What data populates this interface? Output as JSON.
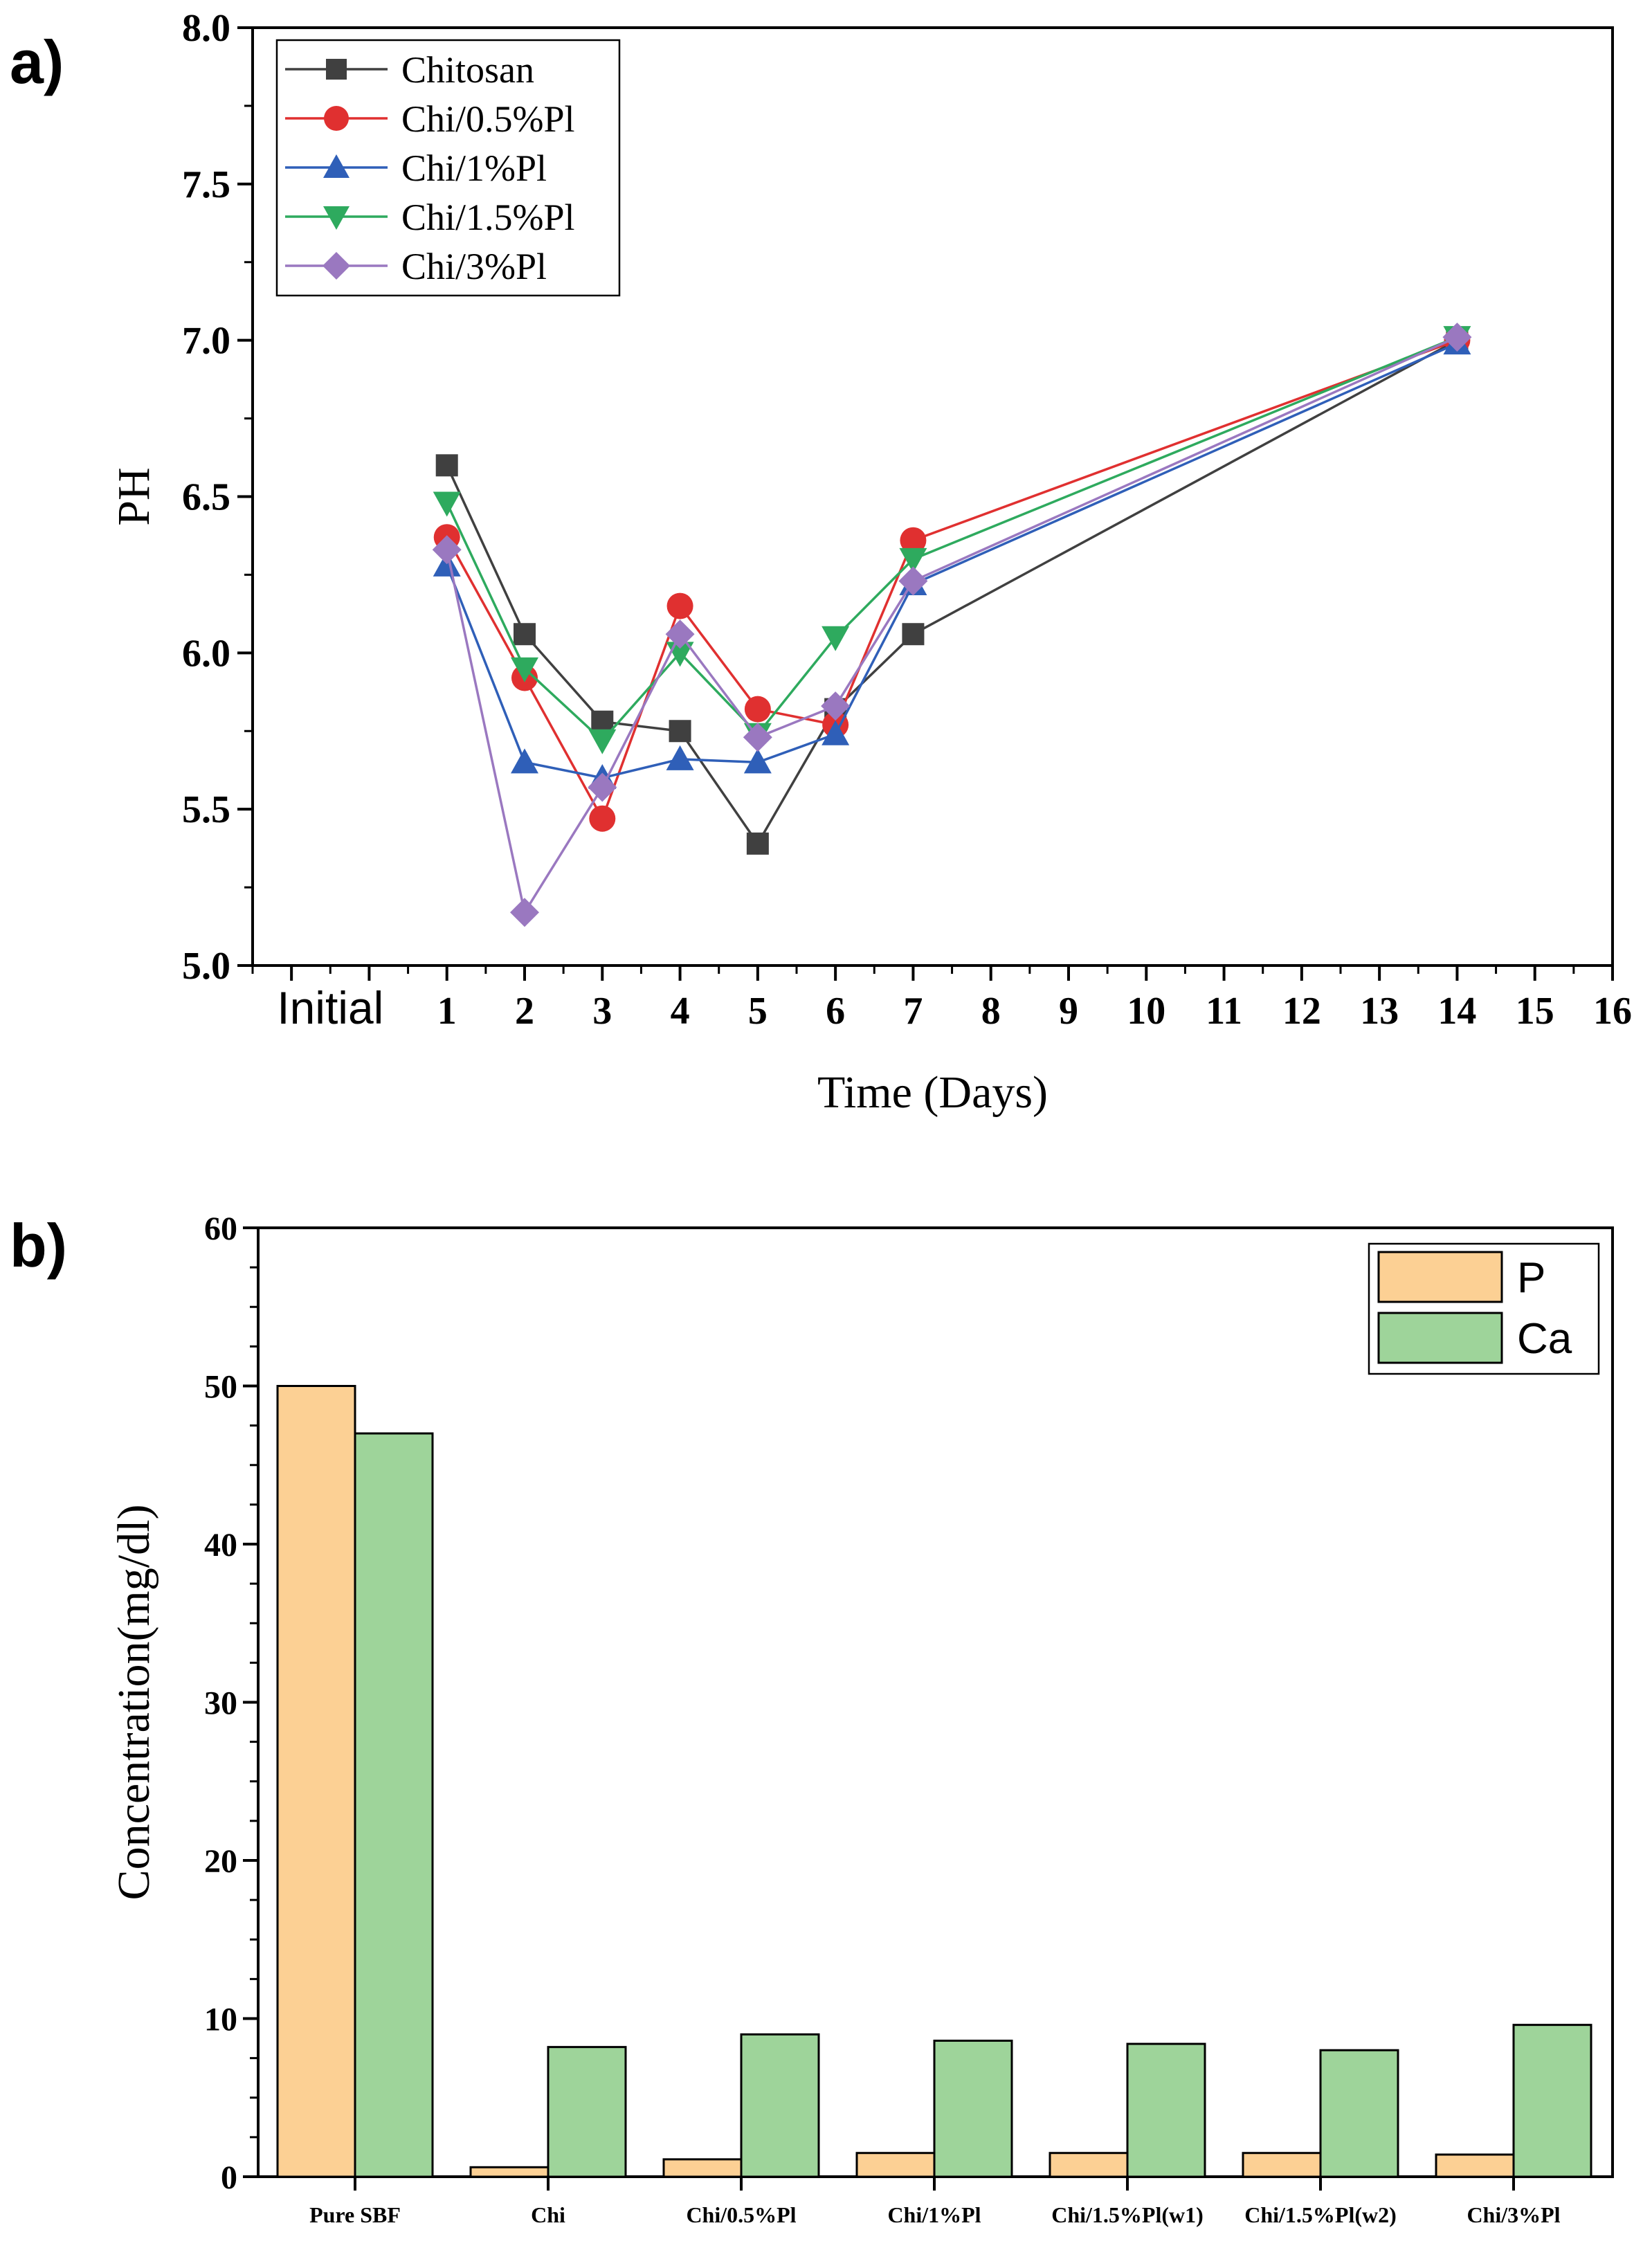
{
  "panels": {
    "a": "a)",
    "b": "b)"
  },
  "chart_data": [
    {
      "type": "line",
      "panel": "a)",
      "title": "",
      "xlabel": "Time (Days)",
      "ylabel": "PH",
      "xlim": [
        -1.5,
        16
      ],
      "ylim": [
        5.0,
        8.0
      ],
      "x_ticks": [
        {
          "value": -0.5,
          "label": "Initial"
        },
        {
          "value": 1,
          "label": "1"
        },
        {
          "value": 2,
          "label": "2"
        },
        {
          "value": 3,
          "label": "3"
        },
        {
          "value": 4,
          "label": "4"
        },
        {
          "value": 5,
          "label": "5"
        },
        {
          "value": 6,
          "label": "6"
        },
        {
          "value": 7,
          "label": "7"
        },
        {
          "value": 8,
          "label": "8"
        },
        {
          "value": 9,
          "label": "9"
        },
        {
          "value": 10,
          "label": "10"
        },
        {
          "value": 11,
          "label": "11"
        },
        {
          "value": 12,
          "label": "12"
        },
        {
          "value": 13,
          "label": "13"
        },
        {
          "value": 14,
          "label": "14"
        },
        {
          "value": 15,
          "label": "15"
        },
        {
          "value": 16,
          "label": "16"
        }
      ],
      "y_ticks": [
        {
          "value": 5.0,
          "label": "5.0"
        },
        {
          "value": 5.5,
          "label": "5.5"
        },
        {
          "value": 6.0,
          "label": "6.0"
        },
        {
          "value": 6.5,
          "label": "6.5"
        },
        {
          "value": 7.0,
          "label": "7.0"
        },
        {
          "value": 7.5,
          "label": "7.5"
        },
        {
          "value": 8.0,
          "label": "8.0"
        }
      ],
      "x": [
        1,
        2,
        3,
        4,
        5,
        6,
        7,
        14
      ],
      "legend_position": "top-left",
      "series": [
        {
          "name": "Chitosan",
          "color": "#404040",
          "marker": "square",
          "values": [
            6.6,
            6.06,
            5.78,
            5.75,
            5.39,
            5.82,
            6.06,
            7.0
          ]
        },
        {
          "name": "Chi/0.5%Pl",
          "color": "#e03030",
          "marker": "circle",
          "values": [
            6.37,
            5.92,
            5.47,
            6.15,
            5.82,
            5.77,
            6.36,
            7.0
          ]
        },
        {
          "name": "Chi/1%Pl",
          "color": "#2f5fb8",
          "marker": "triangle-up",
          "values": [
            6.28,
            5.65,
            5.6,
            5.66,
            5.65,
            5.74,
            6.22,
            6.99
          ]
        },
        {
          "name": "Chi/1.5%Pl",
          "color": "#2eaa5e",
          "marker": "triangle-down",
          "values": [
            6.48,
            5.95,
            5.72,
            6.0,
            5.74,
            6.05,
            6.3,
            7.01
          ]
        },
        {
          "name": "Chi/3%Pl",
          "color": "#9a78c0",
          "marker": "diamond",
          "values": [
            6.33,
            5.17,
            5.57,
            6.06,
            5.73,
            5.83,
            6.23,
            7.01
          ]
        }
      ]
    },
    {
      "type": "bar",
      "panel": "b)",
      "title": "",
      "xlabel": "",
      "ylabel": "Concentration(mg/dl)",
      "ylim": [
        0,
        60
      ],
      "y_ticks": [
        {
          "value": 0,
          "label": "0"
        },
        {
          "value": 10,
          "label": "10"
        },
        {
          "value": 20,
          "label": "20"
        },
        {
          "value": 30,
          "label": "30"
        },
        {
          "value": 40,
          "label": "40"
        },
        {
          "value": 50,
          "label": "50"
        },
        {
          "value": 60,
          "label": "60"
        }
      ],
      "categories": [
        "Pure SBF",
        "Chi",
        "Chi/0.5%Pl",
        "Chi/1%Pl",
        "Chi/1.5%Pl(w1)",
        "Chi/1.5%Pl(w2)",
        "Chi/3%Pl"
      ],
      "legend_position": "top-right",
      "series": [
        {
          "name": "P",
          "color": "#fcd094",
          "values": [
            50.0,
            0.6,
            1.1,
            1.5,
            1.5,
            1.5,
            1.4
          ]
        },
        {
          "name": "Ca",
          "color": "#9ed49a",
          "values": [
            47.0,
            8.2,
            9.0,
            8.6,
            8.4,
            8.0,
            9.6
          ]
        }
      ]
    }
  ]
}
